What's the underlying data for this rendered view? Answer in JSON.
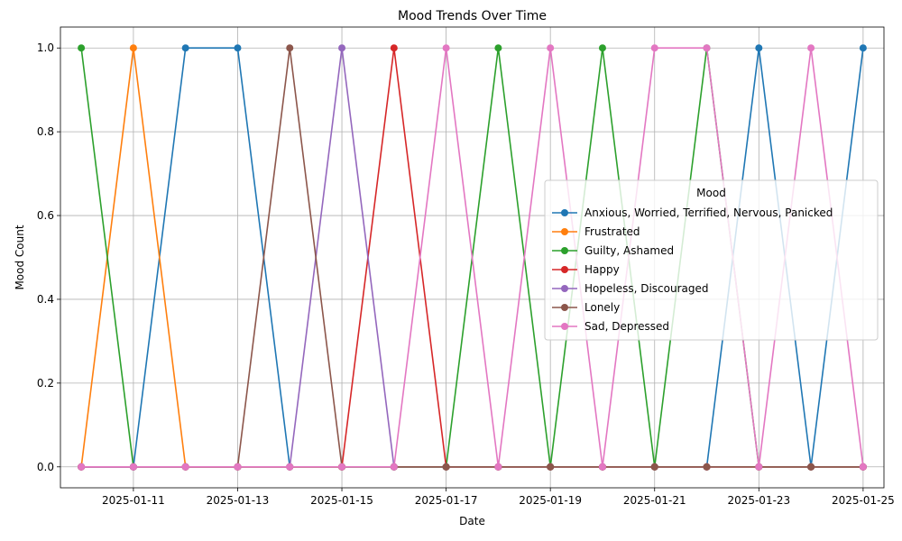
{
  "chart_data": {
    "type": "line",
    "title": "Mood Trends Over Time",
    "xlabel": "Date",
    "ylabel": "Mood Count",
    "x": [
      "2025-01-10",
      "2025-01-11",
      "2025-01-12",
      "2025-01-13",
      "2025-01-14",
      "2025-01-15",
      "2025-01-16",
      "2025-01-17",
      "2025-01-18",
      "2025-01-19",
      "2025-01-20",
      "2025-01-21",
      "2025-01-22",
      "2025-01-23",
      "2025-01-24",
      "2025-01-25"
    ],
    "xticks": [
      "2025-01-11",
      "2025-01-13",
      "2025-01-15",
      "2025-01-17",
      "2025-01-19",
      "2025-01-21",
      "2025-01-23",
      "2025-01-25"
    ],
    "xlim": [
      "2025-01-09",
      "2025-01-26"
    ],
    "ylim": [
      -0.05,
      1.05
    ],
    "yticks": [
      "0.0",
      "0.2",
      "0.4",
      "0.6",
      "0.8",
      "1.0"
    ],
    "grid": true,
    "legend": {
      "title": "Mood",
      "placement": "center-right"
    },
    "series": [
      {
        "name": "Anxious, Worried, Terrified, Nervous, Panicked",
        "color": "#1f77b4",
        "values": [
          0,
          0,
          1,
          1,
          0,
          0,
          0,
          0,
          0,
          0,
          0,
          0,
          0,
          1,
          0,
          1
        ]
      },
      {
        "name": "Frustrated",
        "color": "#ff7f0e",
        "values": [
          0,
          1,
          0,
          0,
          0,
          0,
          0,
          0,
          0,
          0,
          0,
          0,
          0,
          0,
          0,
          0
        ]
      },
      {
        "name": "Guilty, Ashamed",
        "color": "#2ca02c",
        "values": [
          1,
          0,
          0,
          0,
          0,
          0,
          0,
          0,
          1,
          0,
          1,
          0,
          1,
          0,
          0,
          0
        ]
      },
      {
        "name": "Happy",
        "color": "#d62728",
        "values": [
          0,
          0,
          0,
          0,
          0,
          0,
          1,
          0,
          0,
          0,
          0,
          0,
          0,
          0,
          0,
          0
        ]
      },
      {
        "name": "Hopeless, Discouraged",
        "color": "#9467bd",
        "values": [
          0,
          0,
          0,
          0,
          0,
          1,
          0,
          0,
          0,
          0,
          0,
          0,
          0,
          0,
          0,
          0
        ]
      },
      {
        "name": "Lonely",
        "color": "#8c564b",
        "values": [
          0,
          0,
          0,
          0,
          1,
          0,
          0,
          0,
          0,
          0,
          0,
          0,
          0,
          0,
          0,
          0
        ]
      },
      {
        "name": "Sad, Depressed",
        "color": "#e377c2",
        "values": [
          0,
          0,
          0,
          0,
          0,
          0,
          0,
          1,
          0,
          1,
          0,
          1,
          1,
          0,
          1,
          0
        ]
      }
    ]
  }
}
